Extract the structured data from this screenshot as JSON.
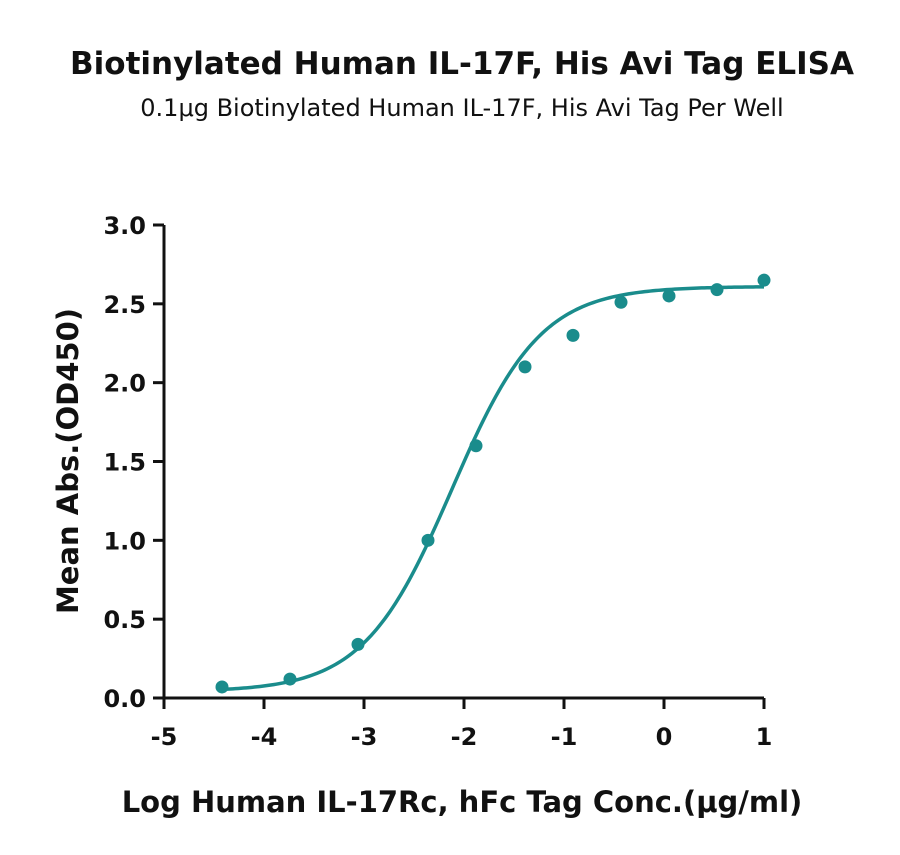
{
  "chart_data": {
    "type": "scatter",
    "title": "Biotinylated Human IL-17F, His Avi Tag ELISA",
    "subtitle": "0.1μg Biotinylated Human IL-17F, His Avi Tag Per Well",
    "xlabel": "Log Human IL-17Rc, hFc Tag Conc.(μg/ml)",
    "ylabel": "Mean Abs.(OD450)",
    "xlim": [
      -5,
      1
    ],
    "ylim": [
      0,
      3.0
    ],
    "x_ticks": [
      "-5",
      "-4",
      "-3",
      "-2",
      "-1",
      "0",
      "1"
    ],
    "y_ticks": [
      "0.0",
      "0.5",
      "1.0",
      "1.5",
      "2.0",
      "2.5",
      "3.0"
    ],
    "grid": false,
    "color": "#1a8c8c",
    "series": [
      {
        "x": [
          -4.42,
          -3.74,
          -3.06,
          -2.36,
          -1.88,
          -1.39,
          -0.91,
          -0.43,
          0.05,
          0.53,
          1.0
        ],
        "y": [
          0.07,
          0.12,
          0.34,
          1.0,
          1.6,
          2.1,
          2.3,
          2.51,
          2.55,
          2.59,
          2.65
        ]
      }
    ],
    "fit_curve": {
      "model": "4PL",
      "bottom": 0.04,
      "top": 2.61,
      "log_ec50": -2.12,
      "hill_slope": 0.98
    }
  }
}
